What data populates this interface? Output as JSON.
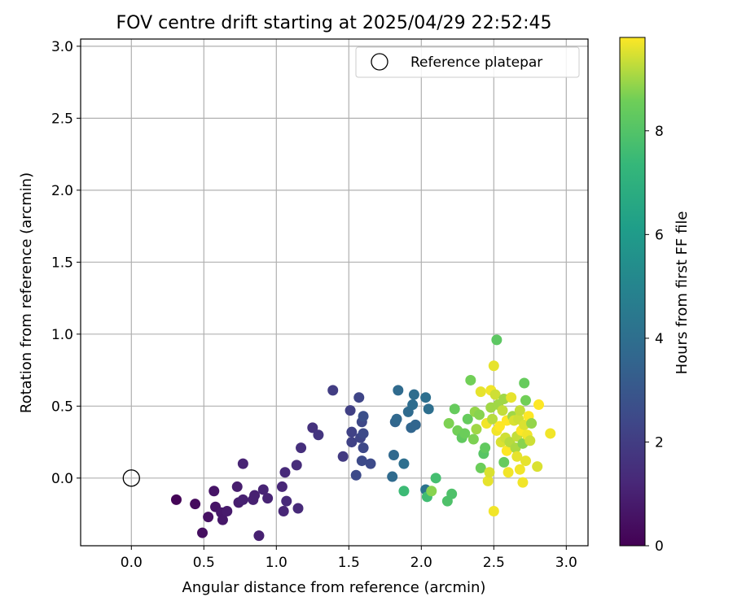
{
  "chart_data": {
    "type": "scatter",
    "title": "FOV centre drift starting at 2025/04/29 22:52:45",
    "xlabel": "Angular distance from reference (arcmin)",
    "ylabel": "Rotation from reference (arcmin)",
    "xlim": [
      -0.35,
      3.15
    ],
    "ylim": [
      -0.47,
      3.05
    ],
    "xticks": [
      "0.0",
      "0.5",
      "1.0",
      "1.5",
      "2.0",
      "2.5",
      "3.0"
    ],
    "yticks": [
      "0.0",
      "0.5",
      "1.0",
      "1.5",
      "2.0",
      "2.5",
      "3.0"
    ],
    "xtick_values": [
      0,
      0.5,
      1,
      1.5,
      2,
      2.5,
      3
    ],
    "ytick_values": [
      0,
      0.5,
      1,
      1.5,
      2,
      2.5,
      3
    ],
    "grid": true,
    "legend": {
      "position": "top-right",
      "entries": [
        "Reference platepar"
      ]
    },
    "reference_point": {
      "x": 0.0,
      "y": 0.0
    },
    "colorbar": {
      "label": "Hours from first FF file",
      "colormap": "viridis",
      "range": [
        0,
        9.8
      ],
      "ticks": [
        "0",
        "2",
        "4",
        "6",
        "8"
      ],
      "tick_values": [
        0,
        2,
        4,
        6,
        8
      ]
    },
    "series": [
      {
        "points": [
          {
            "x": 0.31,
            "y": -0.15,
            "c": 0.1
          },
          {
            "x": 0.44,
            "y": -0.18,
            "c": 0.3
          },
          {
            "x": 0.49,
            "y": -0.38,
            "c": 0.4
          },
          {
            "x": 0.53,
            "y": -0.27,
            "c": 0.5
          },
          {
            "x": 0.57,
            "y": -0.09,
            "c": 0.6
          },
          {
            "x": 0.58,
            "y": -0.2,
            "c": 0.6
          },
          {
            "x": 0.62,
            "y": -0.24,
            "c": 0.7
          },
          {
            "x": 0.63,
            "y": -0.29,
            "c": 0.7
          },
          {
            "x": 0.66,
            "y": -0.23,
            "c": 0.8
          },
          {
            "x": 0.73,
            "y": -0.06,
            "c": 0.9
          },
          {
            "x": 0.74,
            "y": -0.17,
            "c": 0.9
          },
          {
            "x": 0.77,
            "y": -0.15,
            "c": 1.0
          },
          {
            "x": 0.77,
            "y": 0.1,
            "c": 1.1
          },
          {
            "x": 0.84,
            "y": -0.15,
            "c": 1.0
          },
          {
            "x": 0.85,
            "y": -0.12,
            "c": 1.0
          },
          {
            "x": 0.88,
            "y": -0.4,
            "c": 1.0
          },
          {
            "x": 0.91,
            "y": -0.08,
            "c": 1.1
          },
          {
            "x": 0.94,
            "y": -0.14,
            "c": 1.1
          },
          {
            "x": 1.04,
            "y": -0.06,
            "c": 1.2
          },
          {
            "x": 1.05,
            "y": -0.23,
            "c": 1.2
          },
          {
            "x": 1.06,
            "y": 0.04,
            "c": 1.3
          },
          {
            "x": 1.07,
            "y": -0.16,
            "c": 1.3
          },
          {
            "x": 1.14,
            "y": 0.09,
            "c": 1.4
          },
          {
            "x": 1.15,
            "y": -0.21,
            "c": 1.3
          },
          {
            "x": 1.17,
            "y": 0.21,
            "c": 1.5
          },
          {
            "x": 1.25,
            "y": 0.35,
            "c": 1.6
          },
          {
            "x": 1.29,
            "y": 0.3,
            "c": 1.7
          },
          {
            "x": 1.39,
            "y": 0.61,
            "c": 2.0
          },
          {
            "x": 1.46,
            "y": 0.15,
            "c": 1.9
          },
          {
            "x": 1.51,
            "y": 0.47,
            "c": 2.1
          },
          {
            "x": 1.52,
            "y": 0.32,
            "c": 2.2
          },
          {
            "x": 1.52,
            "y": 0.25,
            "c": 2.2
          },
          {
            "x": 1.55,
            "y": 0.02,
            "c": 2.5
          },
          {
            "x": 1.57,
            "y": 0.56,
            "c": 2.3
          },
          {
            "x": 1.58,
            "y": 0.28,
            "c": 2.3
          },
          {
            "x": 1.59,
            "y": 0.39,
            "c": 2.4
          },
          {
            "x": 1.59,
            "y": 0.12,
            "c": 2.5
          },
          {
            "x": 1.6,
            "y": 0.43,
            "c": 2.7
          },
          {
            "x": 1.6,
            "y": 0.31,
            "c": 2.5
          },
          {
            "x": 1.6,
            "y": 0.21,
            "c": 2.4
          },
          {
            "x": 1.65,
            "y": 0.1,
            "c": 2.5
          },
          {
            "x": 1.8,
            "y": 0.01,
            "c": 3.8
          },
          {
            "x": 1.81,
            "y": 0.16,
            "c": 3.7
          },
          {
            "x": 1.82,
            "y": 0.39,
            "c": 3.6
          },
          {
            "x": 1.83,
            "y": 0.41,
            "c": 3.7
          },
          {
            "x": 1.84,
            "y": 0.61,
            "c": 3.8
          },
          {
            "x": 1.88,
            "y": 0.1,
            "c": 4.0
          },
          {
            "x": 1.91,
            "y": 0.46,
            "c": 3.8
          },
          {
            "x": 1.93,
            "y": 0.35,
            "c": 3.6
          },
          {
            "x": 1.94,
            "y": 0.51,
            "c": 3.9
          },
          {
            "x": 1.95,
            "y": 0.58,
            "c": 3.9
          },
          {
            "x": 1.96,
            "y": 0.37,
            "c": 3.6
          },
          {
            "x": 2.03,
            "y": 0.56,
            "c": 4.0
          },
          {
            "x": 2.05,
            "y": 0.48,
            "c": 4.0
          },
          {
            "x": 2.03,
            "y": -0.08,
            "c": 4.2
          },
          {
            "x": 1.88,
            "y": -0.09,
            "c": 7.5
          },
          {
            "x": 2.04,
            "y": -0.13,
            "c": 7.6
          },
          {
            "x": 2.07,
            "y": -0.09,
            "c": 8.8
          },
          {
            "x": 2.1,
            "y": 0.0,
            "c": 7.7
          },
          {
            "x": 2.18,
            "y": -0.16,
            "c": 7.9
          },
          {
            "x": 2.21,
            "y": -0.11,
            "c": 7.9
          },
          {
            "x": 2.19,
            "y": 0.38,
            "c": 8.7
          },
          {
            "x": 2.23,
            "y": 0.48,
            "c": 8.4
          },
          {
            "x": 2.25,
            "y": 0.33,
            "c": 8.6
          },
          {
            "x": 2.28,
            "y": 0.28,
            "c": 8.3
          },
          {
            "x": 2.3,
            "y": 0.31,
            "c": 8.5
          },
          {
            "x": 2.32,
            "y": 0.41,
            "c": 8.4
          },
          {
            "x": 2.34,
            "y": 0.68,
            "c": 8.6
          },
          {
            "x": 2.36,
            "y": 0.27,
            "c": 8.7
          },
          {
            "x": 2.37,
            "y": 0.46,
            "c": 8.9
          },
          {
            "x": 2.38,
            "y": 0.34,
            "c": 9.0
          },
          {
            "x": 2.4,
            "y": 0.44,
            "c": 8.8
          },
          {
            "x": 2.41,
            "y": 0.07,
            "c": 8.5
          },
          {
            "x": 2.41,
            "y": 0.6,
            "c": 9.6
          },
          {
            "x": 2.43,
            "y": 0.17,
            "c": 8.1
          },
          {
            "x": 2.44,
            "y": 0.21,
            "c": 8.3
          },
          {
            "x": 2.45,
            "y": 0.38,
            "c": 9.7
          },
          {
            "x": 2.46,
            "y": -0.02,
            "c": 9.6
          },
          {
            "x": 2.47,
            "y": 0.04,
            "c": 9.5
          },
          {
            "x": 2.48,
            "y": 0.49,
            "c": 9.0
          },
          {
            "x": 2.48,
            "y": 0.61,
            "c": 9.7
          },
          {
            "x": 2.49,
            "y": 0.41,
            "c": 9.2
          },
          {
            "x": 2.5,
            "y": -0.23,
            "c": 9.7
          },
          {
            "x": 2.5,
            "y": 0.78,
            "c": 9.6
          },
          {
            "x": 2.51,
            "y": 0.58,
            "c": 9.4
          },
          {
            "x": 2.52,
            "y": 0.33,
            "c": 9.7
          },
          {
            "x": 2.52,
            "y": 0.96,
            "c": 8.2
          },
          {
            "x": 2.53,
            "y": 0.51,
            "c": 9.0
          },
          {
            "x": 2.54,
            "y": 0.36,
            "c": 9.8
          },
          {
            "x": 2.55,
            "y": 0.25,
            "c": 9.5
          },
          {
            "x": 2.56,
            "y": 0.47,
            "c": 9.3
          },
          {
            "x": 2.57,
            "y": 0.11,
            "c": 8.4
          },
          {
            "x": 2.57,
            "y": 0.55,
            "c": 9.0
          },
          {
            "x": 2.58,
            "y": 0.28,
            "c": 9.4
          },
          {
            "x": 2.59,
            "y": 0.19,
            "c": 9.8
          },
          {
            "x": 2.59,
            "y": 0.4,
            "c": 9.8
          },
          {
            "x": 2.6,
            "y": 0.04,
            "c": 9.7
          },
          {
            "x": 2.61,
            "y": 0.25,
            "c": 9.2
          },
          {
            "x": 2.62,
            "y": 0.56,
            "c": 9.6
          },
          {
            "x": 2.63,
            "y": 0.43,
            "c": 9.0
          },
          {
            "x": 2.64,
            "y": 0.4,
            "c": 9.5
          },
          {
            "x": 2.65,
            "y": 0.21,
            "c": 9.1
          },
          {
            "x": 2.66,
            "y": 0.29,
            "c": 9.3
          },
          {
            "x": 2.66,
            "y": 0.15,
            "c": 9.6
          },
          {
            "x": 2.67,
            "y": 0.41,
            "c": 9.4
          },
          {
            "x": 2.68,
            "y": 0.06,
            "c": 9.7
          },
          {
            "x": 2.68,
            "y": 0.47,
            "c": 9.3
          },
          {
            "x": 2.69,
            "y": 0.33,
            "c": 9.8
          },
          {
            "x": 2.7,
            "y": 0.24,
            "c": 8.8
          },
          {
            "x": 2.7,
            "y": -0.03,
            "c": 9.7
          },
          {
            "x": 2.71,
            "y": 0.66,
            "c": 8.4
          },
          {
            "x": 2.71,
            "y": 0.37,
            "c": 9.5
          },
          {
            "x": 2.72,
            "y": 0.54,
            "c": 8.6
          },
          {
            "x": 2.72,
            "y": 0.12,
            "c": 9.6
          },
          {
            "x": 2.73,
            "y": 0.3,
            "c": 9.7
          },
          {
            "x": 2.74,
            "y": 0.43,
            "c": 9.8
          },
          {
            "x": 2.75,
            "y": 0.26,
            "c": 9.4
          },
          {
            "x": 2.76,
            "y": 0.38,
            "c": 8.9
          },
          {
            "x": 2.8,
            "y": 0.08,
            "c": 9.5
          },
          {
            "x": 2.81,
            "y": 0.51,
            "c": 9.8
          },
          {
            "x": 2.89,
            "y": 0.31,
            "c": 9.7
          }
        ]
      }
    ]
  }
}
